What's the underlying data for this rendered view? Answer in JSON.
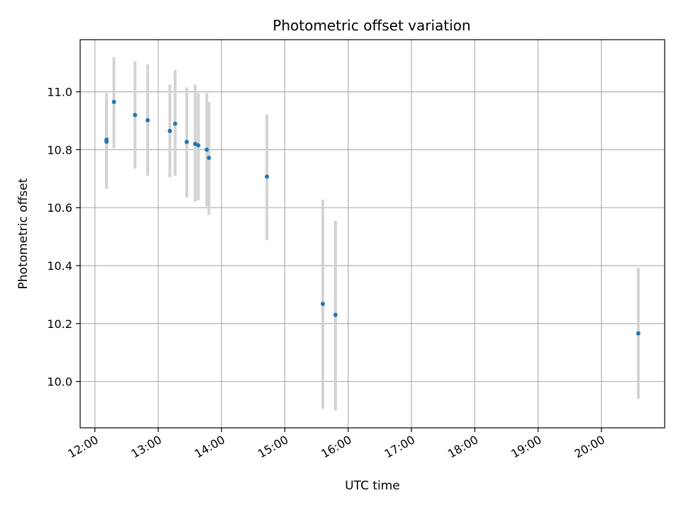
{
  "chart_data": {
    "type": "scatter",
    "title": "Photometric offset variation",
    "xlabel": "UTC time",
    "ylabel": "Photometric offset",
    "x_ticks": [
      "12:00",
      "13:00",
      "14:00",
      "15:00",
      "16:00",
      "17:00",
      "18:00",
      "19:00",
      "20:00"
    ],
    "y_ticks": [
      "10.0",
      "10.2",
      "10.4",
      "10.6",
      "10.8",
      "11.0"
    ],
    "xlim": [
      "11:46",
      "21:00"
    ],
    "ylim": [
      9.84,
      11.18
    ],
    "grid": true,
    "colors": {
      "marker": "#1f77b4",
      "errorbar": "#d3d3d3",
      "grid": "#b0b0b0"
    },
    "points": [
      {
        "time": "12:11",
        "y": 10.835,
        "err_low": 10.665,
        "err_high": 10.995
      },
      {
        "time": "12:11",
        "y": 10.828,
        "err_low": 10.665,
        "err_high": 10.995
      },
      {
        "time": "12:18",
        "y": 10.965,
        "err_low": 10.805,
        "err_high": 11.12
      },
      {
        "time": "12:38",
        "y": 10.92,
        "err_low": 10.735,
        "err_high": 11.105
      },
      {
        "time": "12:50",
        "y": 10.902,
        "err_low": 10.71,
        "err_high": 11.095
      },
      {
        "time": "13:11",
        "y": 10.865,
        "err_low": 10.705,
        "err_high": 11.025
      },
      {
        "time": "13:16",
        "y": 10.89,
        "err_low": 10.71,
        "err_high": 11.075
      },
      {
        "time": "13:27",
        "y": 10.827,
        "err_low": 10.635,
        "err_high": 11.015
      },
      {
        "time": "13:35",
        "y": 10.82,
        "err_low": 10.62,
        "err_high": 11.025
      },
      {
        "time": "13:38",
        "y": 10.815,
        "err_low": 10.625,
        "err_high": 10.995
      },
      {
        "time": "13:46",
        "y": 10.8,
        "err_low": 10.605,
        "err_high": 10.995
      },
      {
        "time": "13:48",
        "y": 10.772,
        "err_low": 10.575,
        "err_high": 10.965
      },
      {
        "time": "14:43",
        "y": 10.707,
        "err_low": 10.488,
        "err_high": 10.922
      },
      {
        "time": "15:36",
        "y": 10.268,
        "err_low": 9.906,
        "err_high": 10.628
      },
      {
        "time": "15:48",
        "y": 10.23,
        "err_low": 9.9,
        "err_high": 10.555
      },
      {
        "time": "20:35",
        "y": 10.166,
        "err_low": 9.94,
        "err_high": 10.392
      }
    ]
  }
}
